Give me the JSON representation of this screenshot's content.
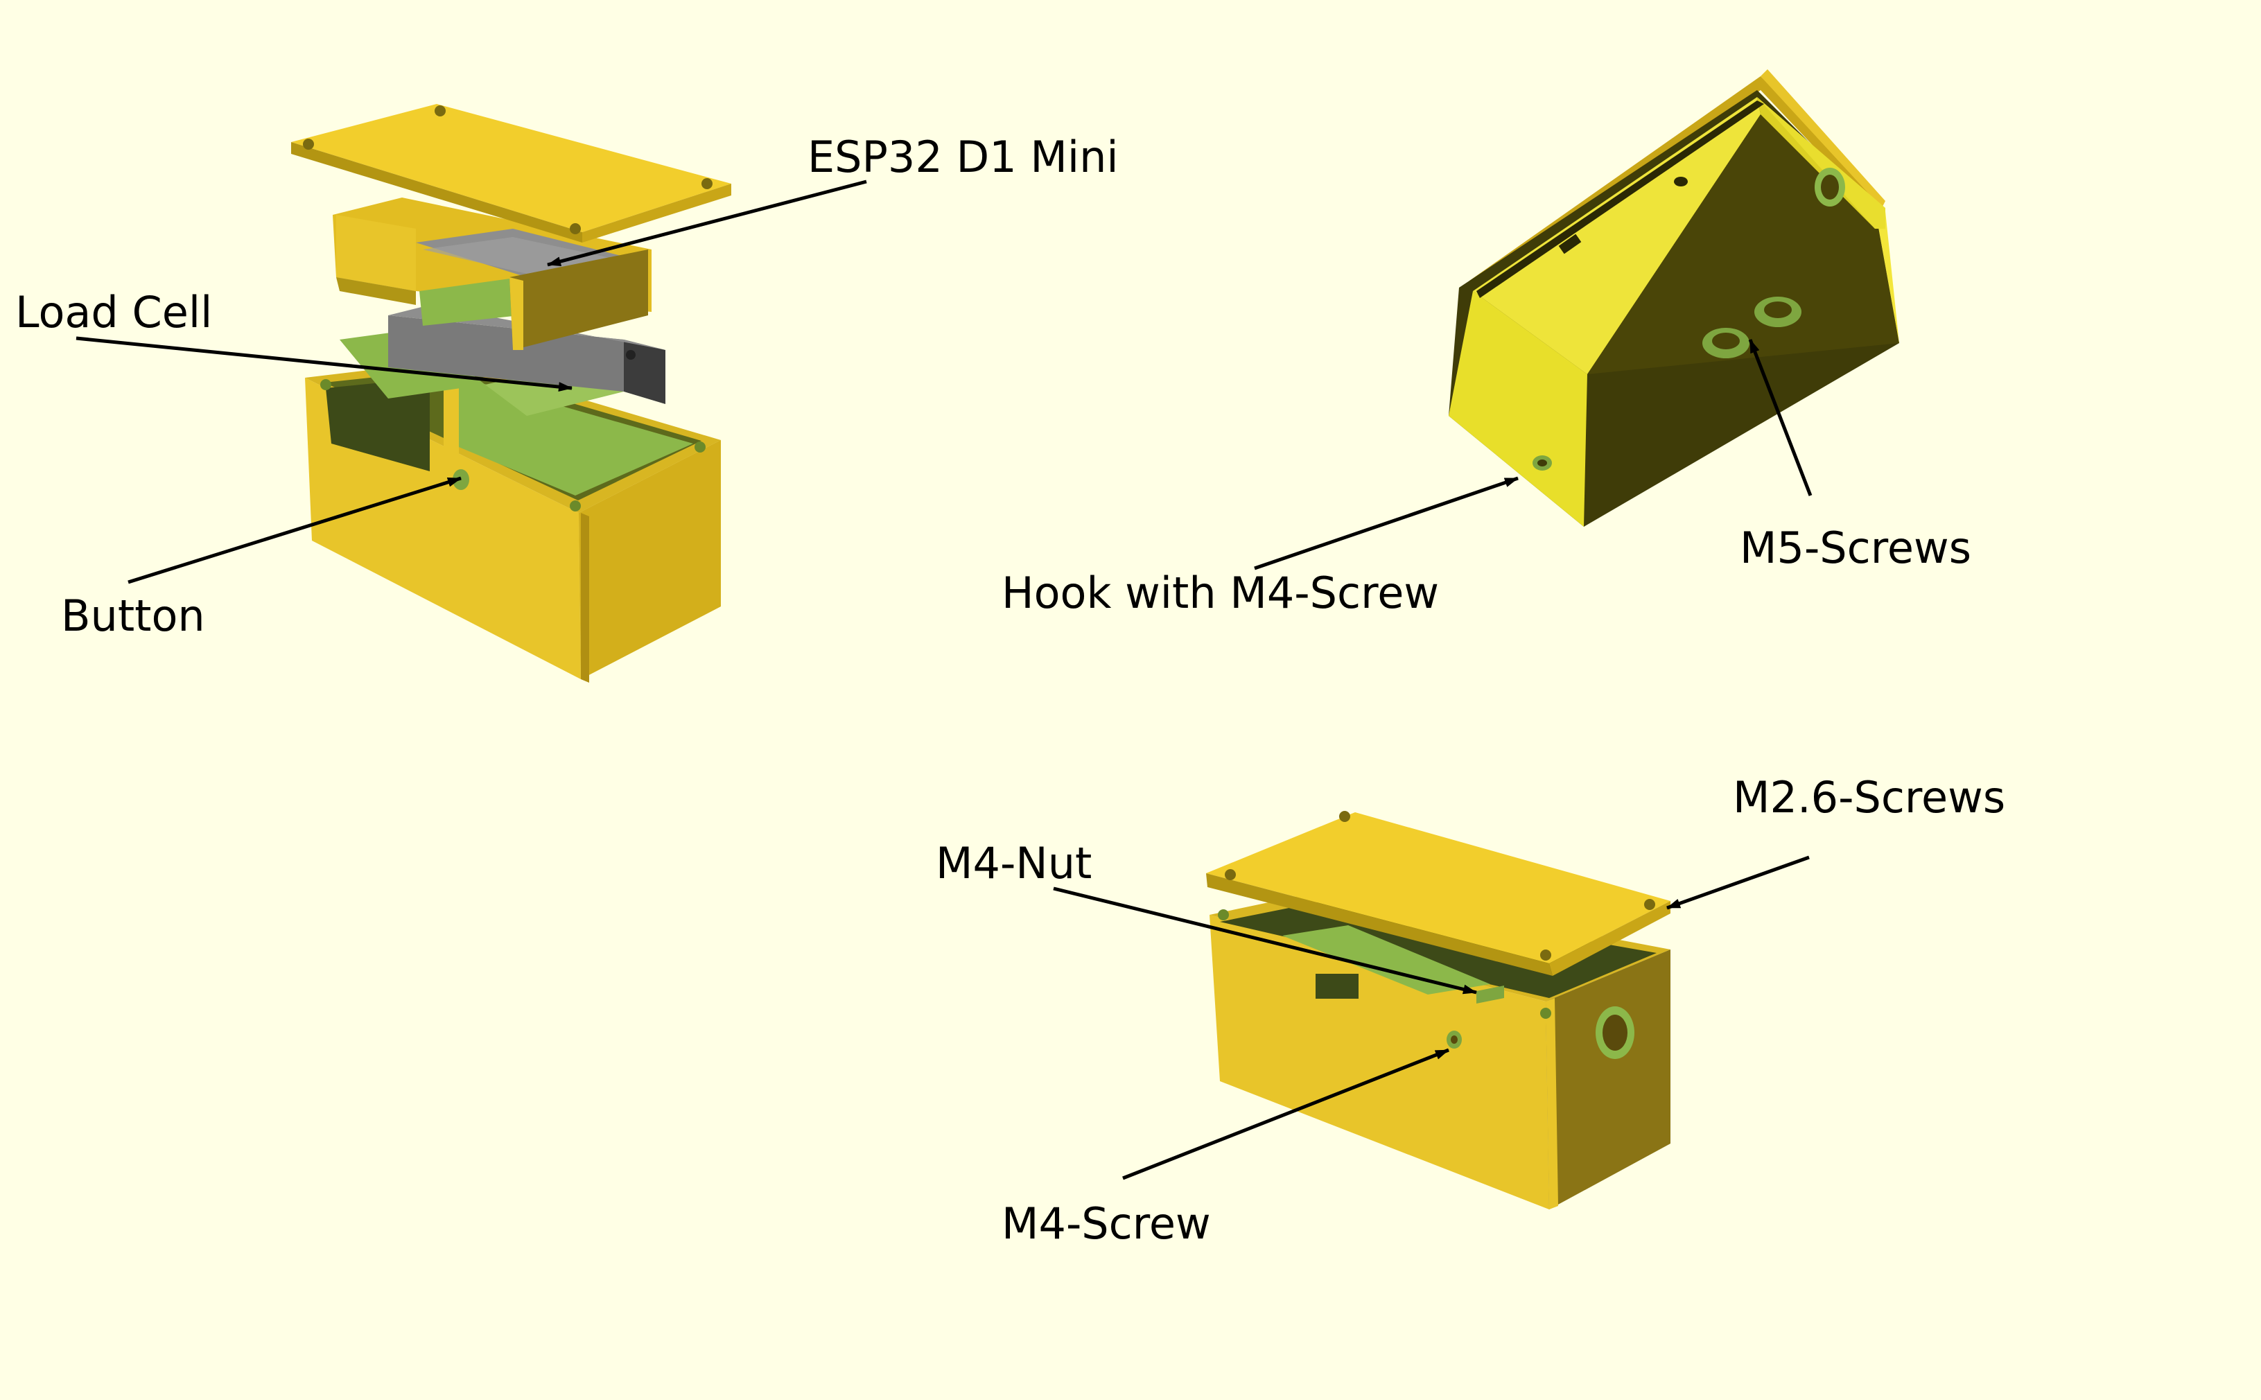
{
  "labels": {
    "esp32": "ESP32 D1 Mini",
    "load_cell": "Load Cell",
    "button": "Button",
    "hook": "Hook with M4-Screw",
    "m5_screws": "M5-Screws",
    "m26_screws": "M2.6-Screws",
    "m4_nut": "M4-Nut",
    "m4_screw": "M4-Screw"
  },
  "colors": {
    "background": "#ffffe5",
    "case_yellow": "#e8c52a",
    "case_light": "#f5d22e",
    "case_dark": "#8a7415",
    "pcb_green": "#9cc45a",
    "load_cell_gray": "#6e6e6e",
    "arrow": "#000000"
  }
}
